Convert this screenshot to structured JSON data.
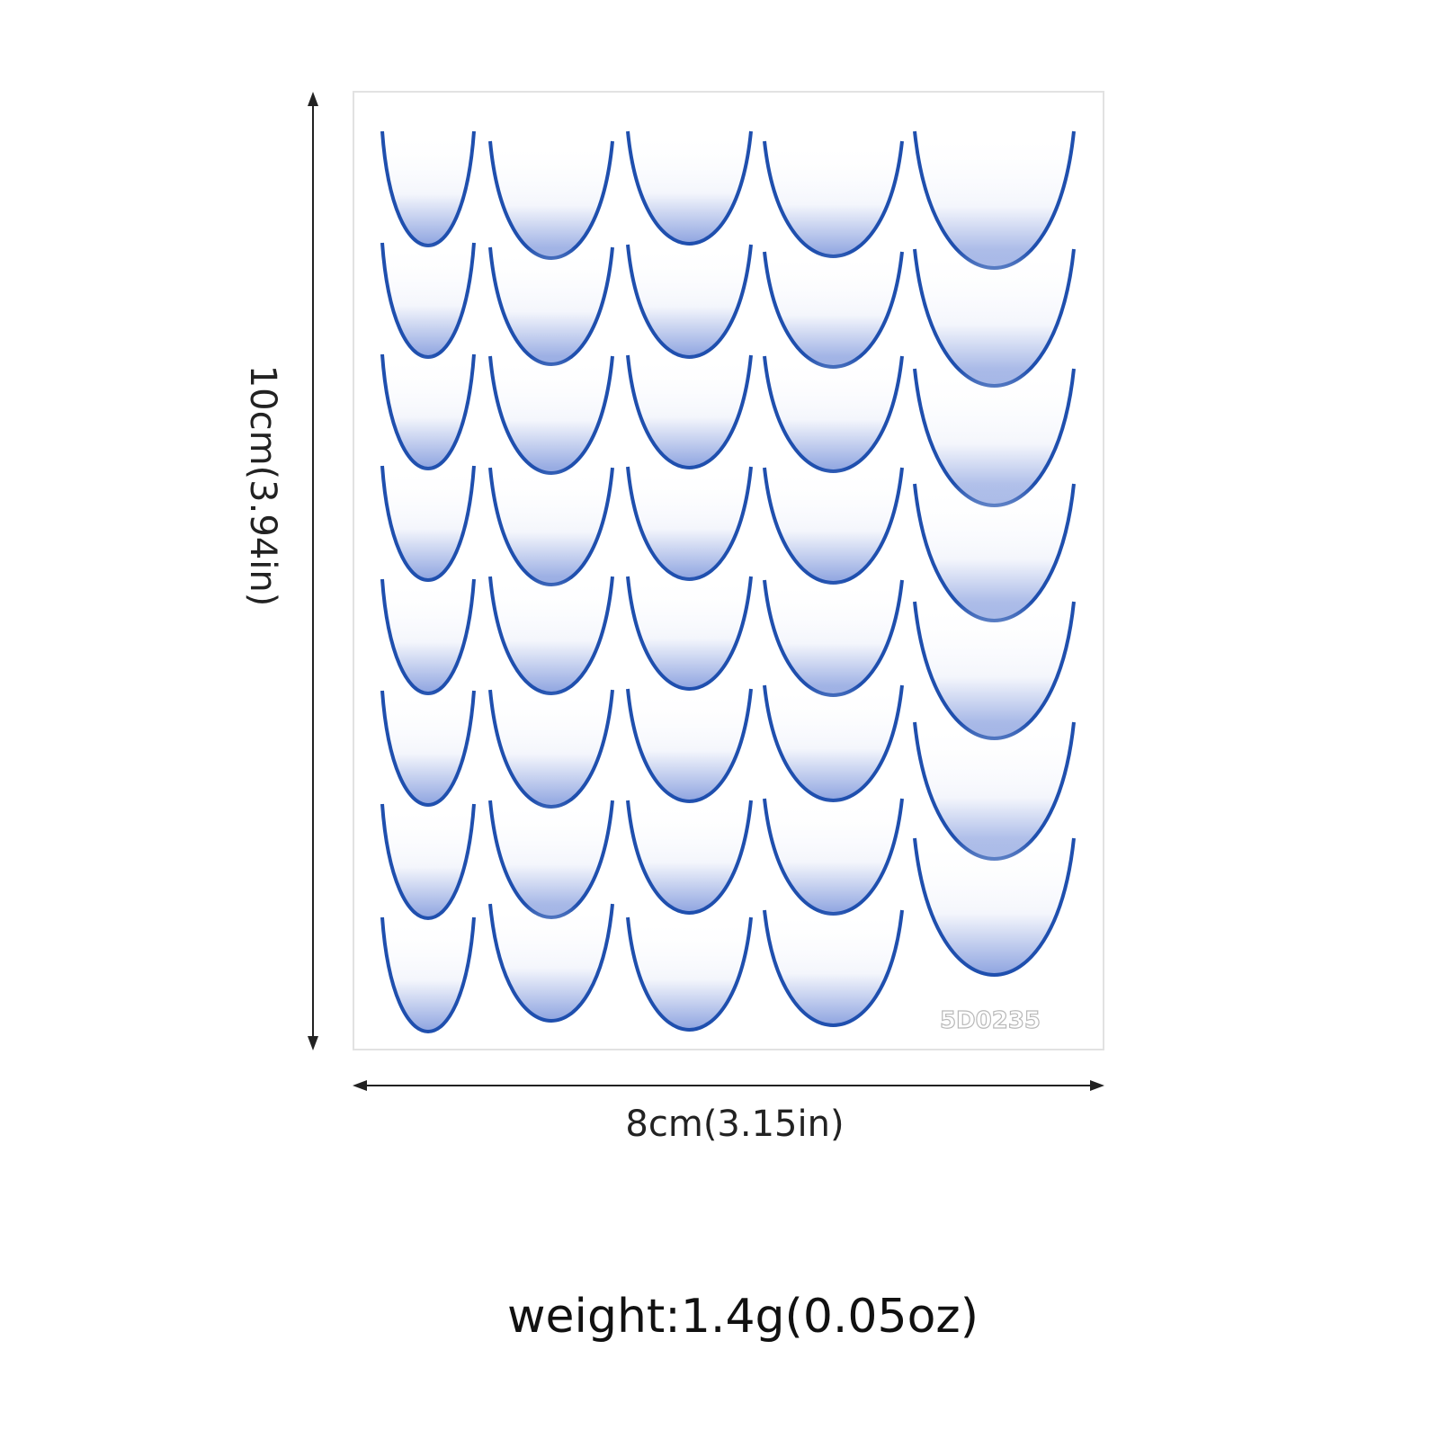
{
  "dimensions": {
    "height": "10cm(3.94in)",
    "width": "8cm(3.15in)"
  },
  "sheet": {
    "code": "5D0235"
  },
  "weight": "weight:1.4g(0.05oz)"
}
